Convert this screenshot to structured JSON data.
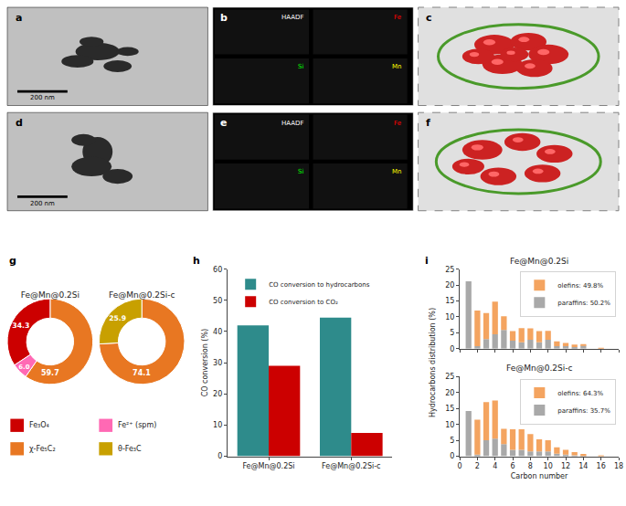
{
  "chart_data": [
    {
      "type": "image",
      "annotations": [
        "a",
        "200 nm"
      ]
    },
    {
      "type": "map",
      "annotations": [
        "b",
        "HAADF",
        "Fe",
        "Si",
        "Mn"
      ]
    },
    {
      "type": "schematic",
      "annotations": [
        "c"
      ]
    },
    {
      "type": "image",
      "annotations": [
        "d",
        "200 nm"
      ]
    },
    {
      "type": "map",
      "annotations": [
        "e",
        "HAADF",
        "Fe",
        "Si",
        "Mn"
      ]
    },
    {
      "type": "schematic",
      "annotations": [
        "f"
      ]
    },
    {
      "type": "pie",
      "title": "Fe@Mn@0.2Si",
      "categories": [
        "χ-Fe₅C₂",
        "Fe₃O₄",
        "Fe²⁺ (spm)"
      ],
      "values": [
        59.7,
        34.3,
        6.0
      ],
      "value_labels": [
        "59.7",
        "34.3",
        "6.0"
      ],
      "colors": [
        "#E87722",
        "#CC0000",
        "#FF69B4"
      ],
      "data_labels": true,
      "annotations": [
        "g"
      ]
    },
    {
      "type": "pie",
      "title": "Fe@Mn@0.2Si-c",
      "categories": [
        "χ-Fe₅C₂",
        "θ-Fe₃C"
      ],
      "values": [
        74.1,
        25.9
      ],
      "value_labels": [
        "74.1",
        "25.9"
      ],
      "colors": [
        "#E87722",
        "#C8A000"
      ],
      "data_labels": true
    },
    {
      "type": "legend",
      "categories": [
        "Fe₃O₄",
        "χ-Fe₅C₂",
        "Fe²⁺ (spm)",
        "θ-Fe₃C"
      ],
      "colors": [
        "#CC0000",
        "#E87722",
        "#FF69B4",
        "#C8A000"
      ]
    },
    {
      "type": "bar",
      "categories": [
        "Fe@Mn@0.2Si",
        "Fe@Mn@0.2Si-c"
      ],
      "series": [
        {
          "name": "CO conversion to hydrocarbons",
          "color": "#2E8B8B",
          "values": [
            42.0,
            44.5
          ]
        },
        {
          "name": "CO conversion to CO₂",
          "color": "#CC0000",
          "values": [
            29.0,
            7.5
          ]
        }
      ],
      "ylabel": "CO conversion (%)",
      "ylim": [
        0,
        60
      ],
      "yticks": [
        0,
        10,
        20,
        30,
        40,
        50,
        60
      ],
      "legend": "upper left",
      "grid": false,
      "annotations": [
        "h"
      ]
    },
    {
      "type": "bar",
      "stacked": true,
      "title": "Fe@Mn@0.2Si",
      "x": [
        1,
        2,
        3,
        4,
        5,
        6,
        7,
        8,
        9,
        10,
        11,
        12,
        13,
        14,
        16
      ],
      "series": [
        {
          "name": "paraffins: 50.2%",
          "color": "#A9A9A9",
          "values": [
            21.2,
            0.8,
            3.0,
            4.5,
            5.9,
            2.5,
            2.0,
            2.8,
            2.0,
            2.8,
            0.8,
            0.8,
            0.5,
            1.0,
            0.0
          ]
        },
        {
          "name": "olefins: 49.8%",
          "color": "#F4A460",
          "values": [
            0,
            11.2,
            8.2,
            10.3,
            4.3,
            3.0,
            4.5,
            3.6,
            3.5,
            2.8,
            1.5,
            1.0,
            0.8,
            0.2,
            0.1
          ]
        }
      ],
      "xlim": [
        0,
        18
      ],
      "xticks": [
        0,
        2,
        4,
        6,
        8,
        10,
        12,
        14,
        16,
        18
      ],
      "ylim": [
        0,
        25
      ],
      "yticks": [
        0,
        5,
        10,
        15,
        20,
        25
      ],
      "legend": "upper right",
      "grid": false,
      "tick_labels": "y",
      "annotations": [
        "i"
      ]
    },
    {
      "type": "bar",
      "stacked": true,
      "title": "Fe@Mn@0.2Si-c",
      "x": [
        1,
        2,
        3,
        4,
        5,
        6,
        7,
        8,
        9,
        10,
        11,
        12,
        13,
        14,
        16
      ],
      "series": [
        {
          "name": "paraffins: 35.7%",
          "color": "#A9A9A9",
          "values": [
            14.2,
            0.5,
            5.0,
            5.5,
            3.8,
            2.0,
            2.0,
            1.5,
            1.5,
            1.5,
            0.8,
            0.5,
            0.3,
            0.2,
            0.0
          ]
        },
        {
          "name": "olefins: 64.3%",
          "color": "#F4A460",
          "values": [
            0,
            11.0,
            12.0,
            12.0,
            4.8,
            6.5,
            6.5,
            5.5,
            3.8,
            3.5,
            2.0,
            1.5,
            1.0,
            0.5,
            0.2
          ]
        }
      ],
      "xlabel": "Carbon number",
      "ylabel": "Hydrocarbons distribution (%)",
      "xlim": [
        0,
        18
      ],
      "xticks": [
        0,
        2,
        4,
        6,
        8,
        10,
        12,
        14,
        16,
        18
      ],
      "ylim": [
        0,
        25
      ],
      "yticks": [
        0,
        5,
        10,
        15,
        20,
        25
      ],
      "legend": "upper right",
      "grid": false
    }
  ]
}
